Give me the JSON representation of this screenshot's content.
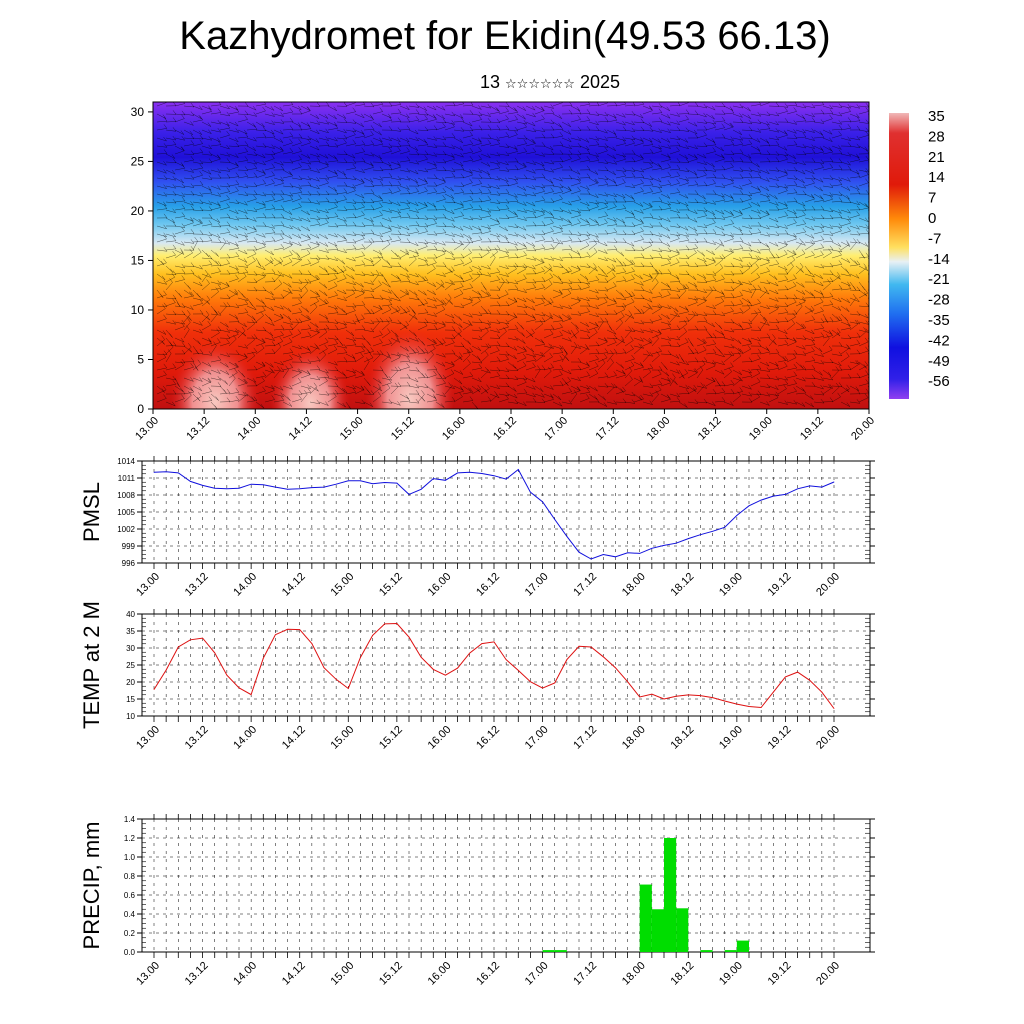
{
  "header": {
    "title": "Kazhydromet for Ekidin(49.53 66.13)",
    "date_day": "13",
    "date_month_glyphs": "☆☆☆☆☆☆",
    "date_year": "2025"
  },
  "chart_data": [
    {
      "type": "heatmap",
      "title": "",
      "description_of_quantity": "",
      "xlabel": "",
      "ylabel": "",
      "x_ticks": [
        "13.00",
        "13.12",
        "14.00",
        "14.12",
        "15.00",
        "15.12",
        "16.00",
        "16.12",
        "17.00",
        "17.12",
        "18.00",
        "18.12",
        "19.00",
        "19.12",
        "20.00"
      ],
      "xlim": [
        0,
        168
      ],
      "ylim": [
        0,
        31
      ],
      "y_ticks": [
        0,
        5,
        10,
        15,
        20,
        25,
        30
      ],
      "colorbar": {
        "labels": [
          "35",
          "28",
          "21",
          "14",
          "7",
          "0",
          "-7",
          "-14",
          "-21",
          "-28",
          "-35",
          "-42",
          "-49",
          "-56"
        ],
        "range": [
          -60,
          38
        ]
      },
      "grid": false,
      "overlay": "wind barbs"
    },
    {
      "type": "line",
      "ylabel": "PMSL",
      "ylim": [
        996,
        1014
      ],
      "y_ticks": [
        "996",
        "999",
        "1002",
        "1005",
        "1008",
        "1011",
        "1014"
      ],
      "x_ticks": [
        "13.00",
        "13.12",
        "14.00",
        "14.12",
        "15.00",
        "15.12",
        "16.00",
        "16.12",
        "17.00",
        "17.12",
        "18.00",
        "18.12",
        "19.00",
        "19.12",
        "20.00"
      ],
      "xlim": [
        0,
        168
      ],
      "grid": true,
      "color": "#1010dd",
      "series": [
        {
          "x": [
            0,
            3,
            6,
            9,
            12,
            15,
            18,
            21,
            24,
            27,
            30,
            33,
            36,
            39,
            42,
            45,
            48,
            51,
            54,
            57,
            60,
            63,
            66,
            69,
            72,
            75,
            78,
            81,
            84,
            87,
            90,
            93,
            96,
            99,
            102,
            105,
            108,
            111,
            114,
            117,
            120,
            123,
            126,
            129,
            132,
            135,
            138,
            141,
            144,
            147,
            150,
            153,
            156,
            159,
            162,
            165,
            168
          ],
          "values": [
            1012.0,
            1012.1,
            1011.9,
            1010.4,
            1009.7,
            1009.2,
            1009.1,
            1009.2,
            1009.9,
            1009.8,
            1009.4,
            1009.0,
            1009.1,
            1009.3,
            1009.4,
            1009.9,
            1010.5,
            1010.5,
            1010.0,
            1010.2,
            1010.1,
            1008.1,
            1009.0,
            1010.9,
            1010.6,
            1011.9,
            1012.0,
            1011.8,
            1011.4,
            1010.8,
            1012.5,
            1008.5,
            1006.8,
            1003.7,
            1000.7,
            997.9,
            996.7,
            997.5,
            997.1,
            997.8,
            997.7,
            998.6,
            999.1,
            999.5,
            1000.3,
            1001.0,
            1001.6,
            1002.3,
            1004.4,
            1006.1,
            1007.1,
            1007.8,
            1008.1,
            1009.1,
            1009.6,
            1009.4,
            1010.3
          ]
        }
      ]
    },
    {
      "type": "line",
      "ylabel": "TEMP at 2 M",
      "ylim": [
        10,
        40
      ],
      "y_ticks": [
        "10",
        "15",
        "20",
        "25",
        "30",
        "35",
        "40"
      ],
      "x_ticks": [
        "13.00",
        "13.12",
        "14.00",
        "14.12",
        "15.00",
        "15.12",
        "16.00",
        "16.12",
        "17.00",
        "17.12",
        "18.00",
        "18.12",
        "19.00",
        "19.12",
        "20.00"
      ],
      "xlim": [
        0,
        168
      ],
      "grid": true,
      "color": "#dd1010",
      "series": [
        {
          "x": [
            0,
            3,
            6,
            9,
            12,
            15,
            18,
            21,
            24,
            27,
            30,
            33,
            36,
            39,
            42,
            45,
            48,
            51,
            54,
            57,
            60,
            63,
            66,
            69,
            72,
            75,
            78,
            81,
            84,
            87,
            90,
            93,
            96,
            99,
            102,
            105,
            108,
            111,
            114,
            117,
            120,
            123,
            126,
            129,
            132,
            135,
            138,
            141,
            144,
            147,
            150,
            153,
            156,
            159,
            162,
            165,
            168
          ],
          "values": [
            17.8,
            23.5,
            30.3,
            32.4,
            32.9,
            28.6,
            22.0,
            18.3,
            16.3,
            27.0,
            33.9,
            35.5,
            35.4,
            31.3,
            24.2,
            20.8,
            18.1,
            27.2,
            33.7,
            37.1,
            37.2,
            33.2,
            27.3,
            23.7,
            22.0,
            24.1,
            28.5,
            31.3,
            31.8,
            26.6,
            23.4,
            20.1,
            18.2,
            19.7,
            26.6,
            30.5,
            30.3,
            27.4,
            24.2,
            20.1,
            15.6,
            16.4,
            15.0,
            15.8,
            16.2,
            16.0,
            15.4,
            14.4,
            13.5,
            12.8,
            12.5,
            17.0,
            21.5,
            22.9,
            20.5,
            17.0,
            12.2
          ]
        }
      ]
    },
    {
      "type": "bar",
      "ylabel": "PRECIP, mm",
      "ylim": [
        0,
        1.4
      ],
      "y_ticks": [
        "0.0",
        "0.2",
        "0.4",
        "0.6",
        "0.8",
        "1.0",
        "1.2",
        "1.4"
      ],
      "x_ticks": [
        "13.00",
        "13.12",
        "14.00",
        "14.12",
        "15.00",
        "15.12",
        "16.00",
        "16.12",
        "17.00",
        "17.12",
        "18.00",
        "18.12",
        "19.00",
        "19.12",
        "20.00"
      ],
      "xlim": [
        0,
        168
      ],
      "grid": true,
      "color": "#00dd00",
      "series": [
        {
          "x": [
            96,
            99,
            120,
            123,
            126,
            129,
            132,
            135,
            141,
            144,
            147
          ],
          "values": [
            0.02,
            0.02,
            0.71,
            0.45,
            1.2,
            0.46,
            0.0,
            0.02,
            0.02,
            0.12,
            0.0
          ]
        }
      ]
    }
  ]
}
